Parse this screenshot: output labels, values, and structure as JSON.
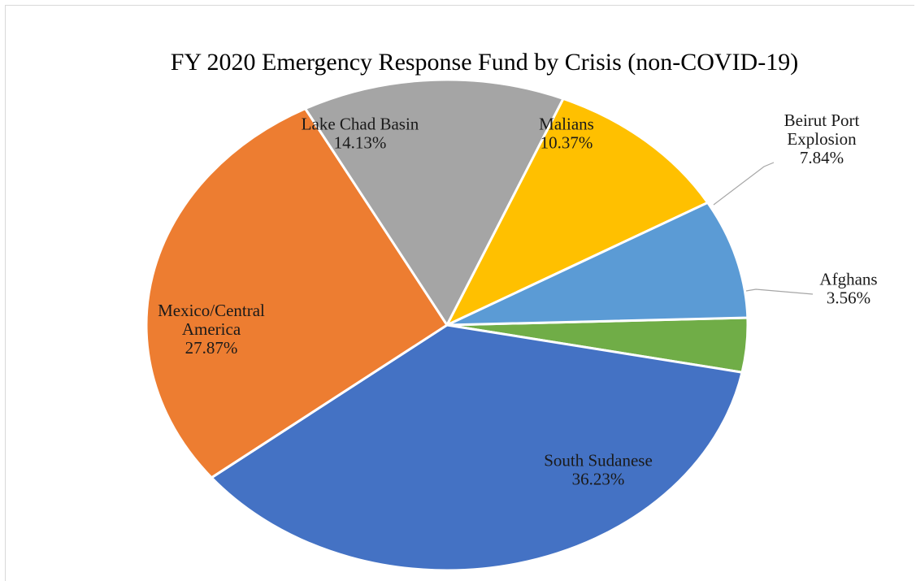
{
  "chart_data": {
    "type": "pie",
    "title": "FY 2020 Emergency Response Fund by Crisis (non-COVID-19)",
    "slices": [
      {
        "label_lines": [
          "Afghans"
        ],
        "value": 3.56,
        "value_label": "3.56%",
        "color": "#70ad47"
      },
      {
        "label_lines": [
          "South Sudanese"
        ],
        "value": 36.23,
        "value_label": "36.23%",
        "color": "#4472c4"
      },
      {
        "label_lines": [
          "Mexico/Central",
          "America"
        ],
        "value": 27.87,
        "value_label": "27.87%",
        "color": "#ed7d31"
      },
      {
        "label_lines": [
          "Lake Chad Basin"
        ],
        "value": 14.13,
        "value_label": "14.13%",
        "color": "#a5a5a5"
      },
      {
        "label_lines": [
          "Malians"
        ],
        "value": 10.37,
        "value_label": "10.37%",
        "color": "#ffc000"
      },
      {
        "label_lines": [
          "Beirut Port",
          "Explosion"
        ],
        "value": 7.84,
        "value_label": "7.84%",
        "color": "#5b9bd5"
      }
    ],
    "legend": "none",
    "data_labels": "category and percentage"
  }
}
